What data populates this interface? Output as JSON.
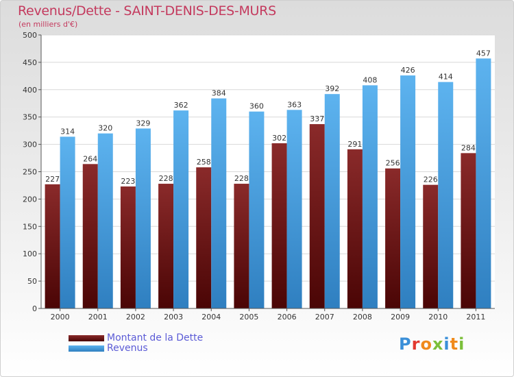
{
  "header": {
    "title": "Revenus/Dette - SAINT-DENIS-DES-MURS",
    "subtitle": "(en milliers d'€)"
  },
  "chart_data": {
    "type": "bar",
    "categories": [
      "2000",
      "2001",
      "2002",
      "2003",
      "2004",
      "2005",
      "2006",
      "2007",
      "2008",
      "2009",
      "2010",
      "2011"
    ],
    "series": [
      {
        "name": "Montant de la Dette",
        "color": "#7a1f1f",
        "values": [
          227,
          264,
          223,
          228,
          258,
          228,
          302,
          337,
          291,
          256,
          226,
          284
        ]
      },
      {
        "name": "Revenus",
        "color": "#4da6e6",
        "values": [
          314,
          320,
          329,
          362,
          384,
          360,
          363,
          392,
          408,
          426,
          414,
          457
        ]
      }
    ],
    "title": "Revenus/Dette - SAINT-DENIS-DES-MURS",
    "ylabel": "(en milliers d'€)",
    "xlabel": "",
    "ylim": [
      0,
      500
    ],
    "yticks": [
      0,
      50,
      100,
      150,
      200,
      250,
      300,
      350,
      400,
      450,
      500
    ],
    "grid": true,
    "legend": "bottom-left"
  },
  "legend": {
    "items": [
      {
        "label": "Montant de la Dette",
        "color": "#7a1f1f"
      },
      {
        "label": "Revenus",
        "color": "#4da6e6"
      }
    ]
  },
  "logo": {
    "letters": [
      "P",
      "r",
      "o",
      "x",
      "i",
      "t",
      "i"
    ],
    "colors": [
      "#3a8fd8",
      "#e2382f",
      "#f08a1c",
      "#7bbf3a",
      "#3a8fd8",
      "#f08a1c",
      "#7bbf3a"
    ]
  }
}
